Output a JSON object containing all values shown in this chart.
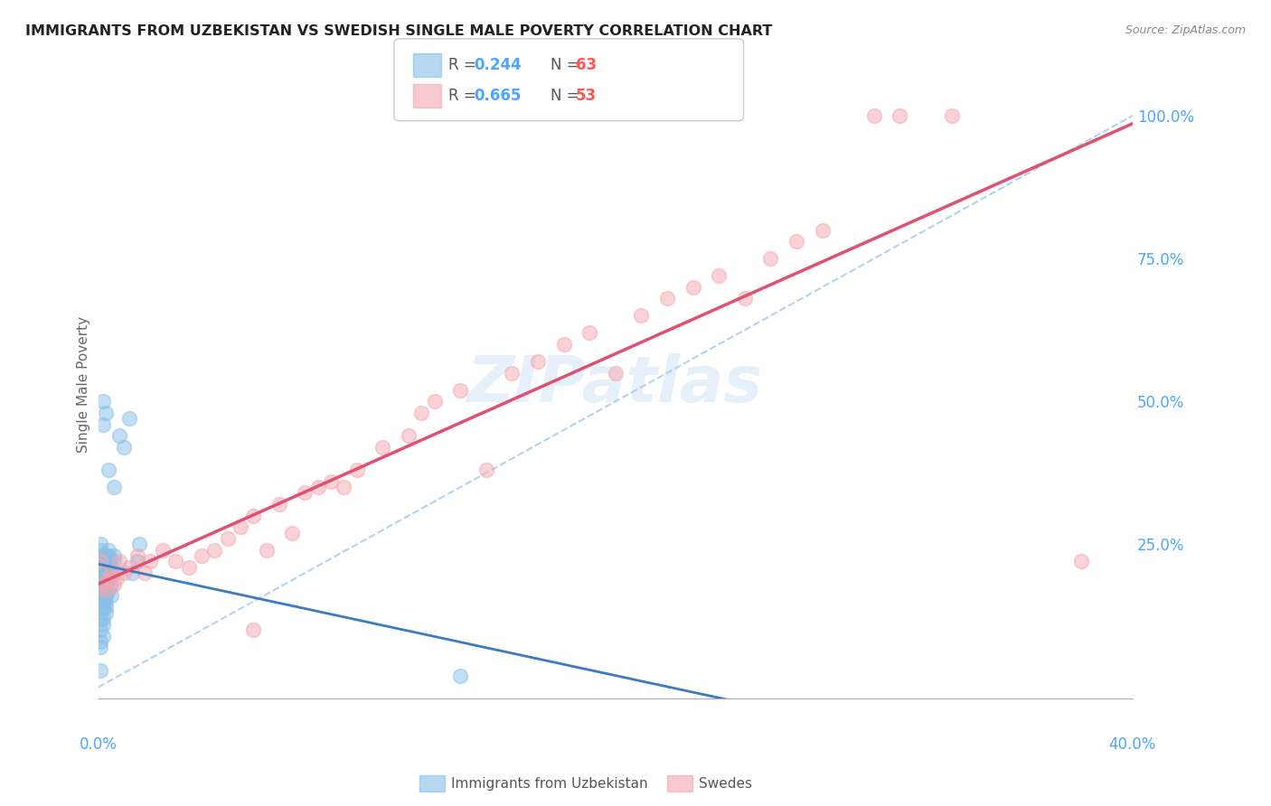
{
  "title": "IMMIGRANTS FROM UZBEKISTAN VS SWEDISH SINGLE MALE POVERTY CORRELATION CHART",
  "source": "Source: ZipAtlas.com",
  "ylabel": "Single Male Poverty",
  "xlim": [
    0.0,
    0.4
  ],
  "ylim": [
    -0.02,
    1.08
  ],
  "blue_color": "#87bfe8",
  "pink_color": "#f4a6b0",
  "blue_line_color": "#3a7cbf",
  "pink_line_color": "#e05070",
  "blue_dashed_color": "#a0c8e8",
  "legend_label1": "Immigrants from Uzbekistan",
  "legend_label2": "Swedes",
  "watermark": "ZIPatlas",
  "background_color": "#ffffff",
  "grid_color": "#e0e0e0",
  "blue_pts": [
    [
      0.001,
      0.22
    ],
    [
      0.001,
      0.2
    ],
    [
      0.001,
      0.19
    ],
    [
      0.001,
      0.18
    ],
    [
      0.001,
      0.16
    ],
    [
      0.001,
      0.14
    ],
    [
      0.001,
      0.12
    ],
    [
      0.001,
      0.1
    ],
    [
      0.001,
      0.08
    ],
    [
      0.001,
      0.24
    ],
    [
      0.001,
      0.22
    ],
    [
      0.001,
      0.19
    ],
    [
      0.001,
      0.07
    ],
    [
      0.001,
      0.25
    ],
    [
      0.001,
      0.23
    ],
    [
      0.001,
      0.03
    ],
    [
      0.002,
      0.2
    ],
    [
      0.002,
      0.18
    ],
    [
      0.002,
      0.17
    ],
    [
      0.002,
      0.15
    ],
    [
      0.002,
      0.14
    ],
    [
      0.002,
      0.22
    ],
    [
      0.002,
      0.11
    ],
    [
      0.002,
      0.22
    ],
    [
      0.002,
      0.09
    ],
    [
      0.002,
      0.21
    ],
    [
      0.002,
      0.18
    ],
    [
      0.002,
      0.12
    ],
    [
      0.002,
      0.16
    ],
    [
      0.002,
      0.46
    ],
    [
      0.002,
      0.5
    ],
    [
      0.003,
      0.23
    ],
    [
      0.003,
      0.21
    ],
    [
      0.003,
      0.2
    ],
    [
      0.003,
      0.18
    ],
    [
      0.003,
      0.16
    ],
    [
      0.003,
      0.13
    ],
    [
      0.003,
      0.14
    ],
    [
      0.003,
      0.2
    ],
    [
      0.003,
      0.22
    ],
    [
      0.003,
      0.15
    ],
    [
      0.003,
      0.48
    ],
    [
      0.004,
      0.22
    ],
    [
      0.004,
      0.21
    ],
    [
      0.004,
      0.24
    ],
    [
      0.004,
      0.19
    ],
    [
      0.004,
      0.17
    ],
    [
      0.004,
      0.23
    ],
    [
      0.004,
      0.38
    ],
    [
      0.005,
      0.21
    ],
    [
      0.005,
      0.18
    ],
    [
      0.005,
      0.16
    ],
    [
      0.005,
      0.2
    ],
    [
      0.006,
      0.22
    ],
    [
      0.006,
      0.2
    ],
    [
      0.006,
      0.23
    ],
    [
      0.006,
      0.35
    ],
    [
      0.008,
      0.44
    ],
    [
      0.01,
      0.42
    ],
    [
      0.012,
      0.47
    ],
    [
      0.013,
      0.2
    ],
    [
      0.015,
      0.22
    ],
    [
      0.016,
      0.25
    ],
    [
      0.14,
      0.02
    ]
  ],
  "pink_pts": [
    [
      0.001,
      0.22
    ],
    [
      0.002,
      0.18
    ],
    [
      0.003,
      0.17
    ],
    [
      0.004,
      0.19
    ],
    [
      0.005,
      0.2
    ],
    [
      0.006,
      0.18
    ],
    [
      0.007,
      0.19
    ],
    [
      0.008,
      0.22
    ],
    [
      0.01,
      0.2
    ],
    [
      0.012,
      0.21
    ],
    [
      0.015,
      0.23
    ],
    [
      0.018,
      0.2
    ],
    [
      0.02,
      0.22
    ],
    [
      0.025,
      0.24
    ],
    [
      0.03,
      0.22
    ],
    [
      0.035,
      0.21
    ],
    [
      0.04,
      0.23
    ],
    [
      0.045,
      0.24
    ],
    [
      0.05,
      0.26
    ],
    [
      0.055,
      0.28
    ],
    [
      0.06,
      0.3
    ],
    [
      0.065,
      0.24
    ],
    [
      0.07,
      0.32
    ],
    [
      0.075,
      0.27
    ],
    [
      0.08,
      0.34
    ],
    [
      0.085,
      0.35
    ],
    [
      0.09,
      0.36
    ],
    [
      0.095,
      0.35
    ],
    [
      0.1,
      0.38
    ],
    [
      0.11,
      0.42
    ],
    [
      0.12,
      0.44
    ],
    [
      0.125,
      0.48
    ],
    [
      0.13,
      0.5
    ],
    [
      0.14,
      0.52
    ],
    [
      0.15,
      0.38
    ],
    [
      0.16,
      0.55
    ],
    [
      0.17,
      0.57
    ],
    [
      0.18,
      0.6
    ],
    [
      0.19,
      0.62
    ],
    [
      0.2,
      0.55
    ],
    [
      0.21,
      0.65
    ],
    [
      0.22,
      0.68
    ],
    [
      0.23,
      0.7
    ],
    [
      0.24,
      0.72
    ],
    [
      0.25,
      0.68
    ],
    [
      0.26,
      0.75
    ],
    [
      0.27,
      0.78
    ],
    [
      0.28,
      0.8
    ],
    [
      0.3,
      1.0
    ],
    [
      0.31,
      1.0
    ],
    [
      0.33,
      1.0
    ],
    [
      0.06,
      0.1
    ],
    [
      0.38,
      0.22
    ]
  ]
}
